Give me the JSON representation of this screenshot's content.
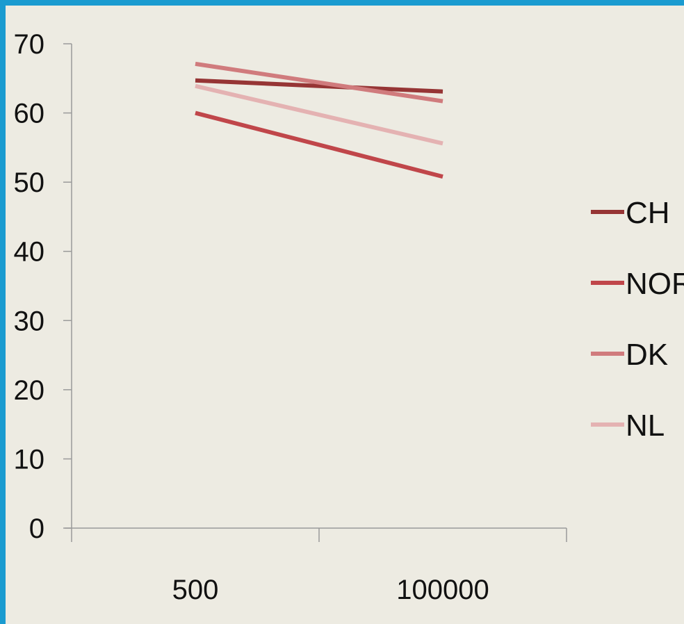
{
  "chart_data": {
    "type": "line",
    "categories": [
      "500",
      "100000"
    ],
    "series": [
      {
        "name": "CH",
        "values": [
          64.7,
          63.1
        ],
        "color": "#963535"
      },
      {
        "name": "NOR",
        "values": [
          60.0,
          50.8
        ],
        "color": "#c0464a"
      },
      {
        "name": "DK",
        "values": [
          67.1,
          61.7
        ],
        "color": "#d07b7d"
      },
      {
        "name": "NL",
        "values": [
          63.9,
          55.6
        ],
        "color": "#e4b2b2"
      }
    ],
    "ylim": [
      0,
      70
    ],
    "yticks": [
      0,
      10,
      20,
      30,
      40,
      50,
      60,
      70
    ],
    "grid": false,
    "legend_position": "right",
    "axis_color": "#9a9a9a"
  }
}
